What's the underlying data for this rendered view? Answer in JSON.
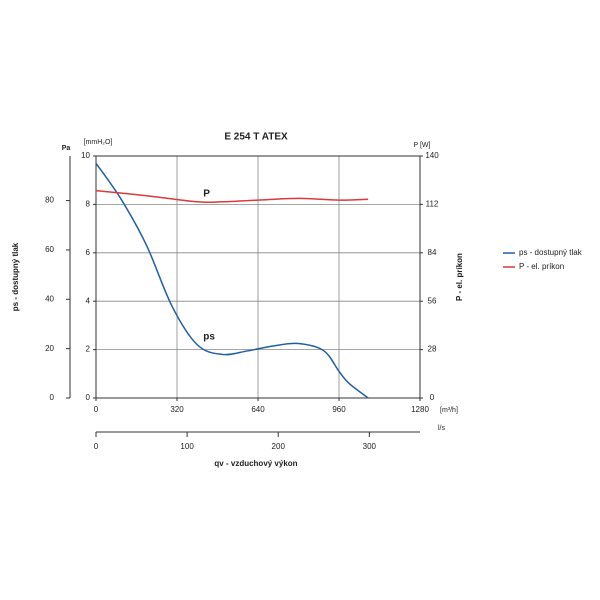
{
  "chart_data": {
    "type": "line",
    "title": "E 254 T ATEX",
    "y_label": "ps - dostupný tlak",
    "y_unit": "[mmH₂O]",
    "y_pa_unit": "Pa",
    "y2_label": "P - el. príkon",
    "y2_unit": "P [W]",
    "x_unit": "[m³/h]",
    "x2_unit": "l/s",
    "x_label": "qv - vzduchový výkon",
    "xlim": [
      0,
      1280
    ],
    "xticks": [
      0,
      320,
      640,
      960,
      1280
    ],
    "x2lim": [
      0,
      355.6
    ],
    "x2ticks": [
      0,
      100,
      200,
      300
    ],
    "ylim": [
      0,
      10
    ],
    "yticks": [
      0,
      2,
      4,
      6,
      8,
      10
    ],
    "ylim_pa": [
      0,
      98.07
    ],
    "yticks_pa": [
      0,
      20,
      40,
      60,
      80
    ],
    "y2lim": [
      0,
      140
    ],
    "y2ticks": [
      0,
      28,
      56,
      84,
      112,
      140
    ],
    "grid": true,
    "series": [
      {
        "name": "ps - dostupný tlak",
        "annotation": "ps",
        "color": "#1f5fa8",
        "x": [
          0,
          100,
          200,
          300,
          400,
          500,
          600,
          700,
          800,
          900,
          960,
          1000,
          1075
        ],
        "values": [
          9.7,
          8.2,
          6.3,
          3.8,
          2.2,
          1.8,
          1.95,
          2.15,
          2.25,
          1.95,
          1.1,
          0.6,
          0
        ]
      },
      {
        "name": "P - el. príkon",
        "annotation": "P",
        "color": "#d93a3a",
        "axis": "y2",
        "x": [
          0,
          200,
          400,
          500,
          640,
          800,
          960,
          1075
        ],
        "values": [
          120,
          117,
          113.5,
          113.5,
          114.5,
          115.5,
          114.5,
          115
        ]
      }
    ]
  }
}
